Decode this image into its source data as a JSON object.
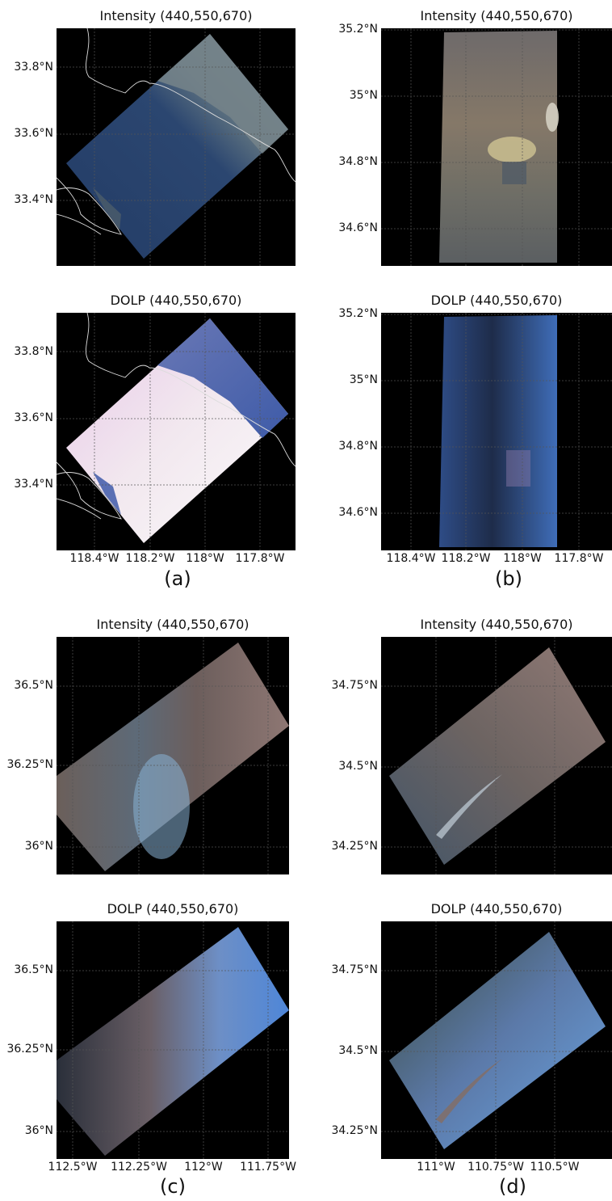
{
  "figures": {
    "a": {
      "caption": "(a)",
      "top_title": "Intensity (440,550,670)",
      "bottom_title": "DOLP (440,550,670)",
      "y_labels": [
        "33.8°N",
        "33.6°N",
        "33.4°N"
      ],
      "x_labels": [
        "118.4°W",
        "118.2°W",
        "118°W",
        "117.8°W"
      ]
    },
    "b": {
      "caption": "(b)",
      "top_title": "Intensity (440,550,670)",
      "bottom_title": "DOLP (440,550,670)",
      "y_labels": [
        "35.2°N",
        "35°N",
        "34.8°N",
        "34.6°N"
      ],
      "x_labels": [
        "118.4°W",
        "118.2°W",
        "118°W",
        "117.8°W"
      ]
    },
    "c": {
      "caption": "(c)",
      "top_title": "Intensity (440,550,670)",
      "bottom_title": "DOLP (440,550,670)",
      "y_labels": [
        "36.5°N",
        "36.25°N",
        "36°N"
      ],
      "x_labels": [
        "112.5°W",
        "112.25°W",
        "112°W",
        "111.75°W"
      ]
    },
    "d": {
      "caption": "(d)",
      "top_title": "Intensity (440,550,670)",
      "bottom_title": "DOLP (440,550,670)",
      "y_labels": [
        "34.75°N",
        "34.5°N",
        "34.25°N"
      ],
      "x_labels": [
        "111°W",
        "110.75°W",
        "110.5°W"
      ]
    }
  },
  "colors": {
    "background": "#000000",
    "gridline": "#666666",
    "coastline": "#dcdcdc"
  }
}
